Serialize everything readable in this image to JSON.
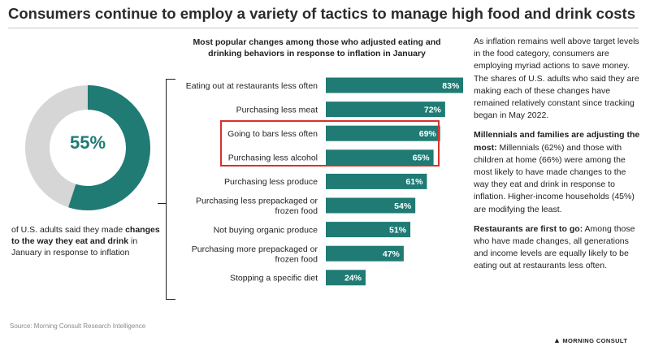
{
  "title": "Consumers continue to employ a variety of tactics to manage high food and drink costs",
  "donut": {
    "value_label": "55%",
    "value": 55,
    "accent_color": "#1f7b74",
    "rest_color": "#d6d6d6",
    "caption_pre": "of U.S. adults said they made ",
    "caption_bold": "changes to the way they eat and drink",
    "caption_post": " in January in response to inflation"
  },
  "chart_data": {
    "type": "bar",
    "orientation": "horizontal",
    "title": "Most popular changes among those who adjusted eating and drinking behaviors in response to inflation in January",
    "categories": [
      [
        "Eating out at restaurants less often"
      ],
      [
        "Purchasing less meat"
      ],
      [
        "Going to bars less often"
      ],
      [
        "Purchasing less alcohol"
      ],
      [
        "Purchasing less produce"
      ],
      [
        "Purchasing less prepackaged or",
        "frozen food"
      ],
      [
        "Not buying organic produce"
      ],
      [
        "Purchasing more prepackaged or",
        "frozen food"
      ],
      [
        "Stopping a specific diet"
      ]
    ],
    "values": [
      83,
      72,
      69,
      65,
      61,
      54,
      51,
      47,
      24
    ],
    "value_labels": [
      "83%",
      "72%",
      "69%",
      "65%",
      "61%",
      "54%",
      "51%",
      "47%",
      "24%"
    ],
    "highlighted": [
      2,
      3
    ],
    "bar_color": "#1f7b74",
    "highlight_color": "#d6312e",
    "grid": false
  },
  "commentary": {
    "p1": "As inflation remains well above target levels in the food category, consumers are employing myriad actions to save money. The shares of U.S. adults who said they are making each of these changes have remained relatively constant since tracking began in May 2022.",
    "p2_bold": "Millennials and families are adjusting the most:",
    "p2": " Millennials (62%) and those with children at home (66%) were among the most likely to have made changes to the way they eat and drink in response to inflation. Higher-income households (45%) are modifying the least.",
    "p3_bold": "Restaurants are first to go:",
    "p3": " Among those who have made changes, all generations and income levels are equally likely to be eating out at restaurants less often."
  },
  "source": "Source: Morning Consult Research Intelligence",
  "logo": {
    "icon": "morning-consult-mark-icon",
    "text": "MORNING CONSULT"
  }
}
